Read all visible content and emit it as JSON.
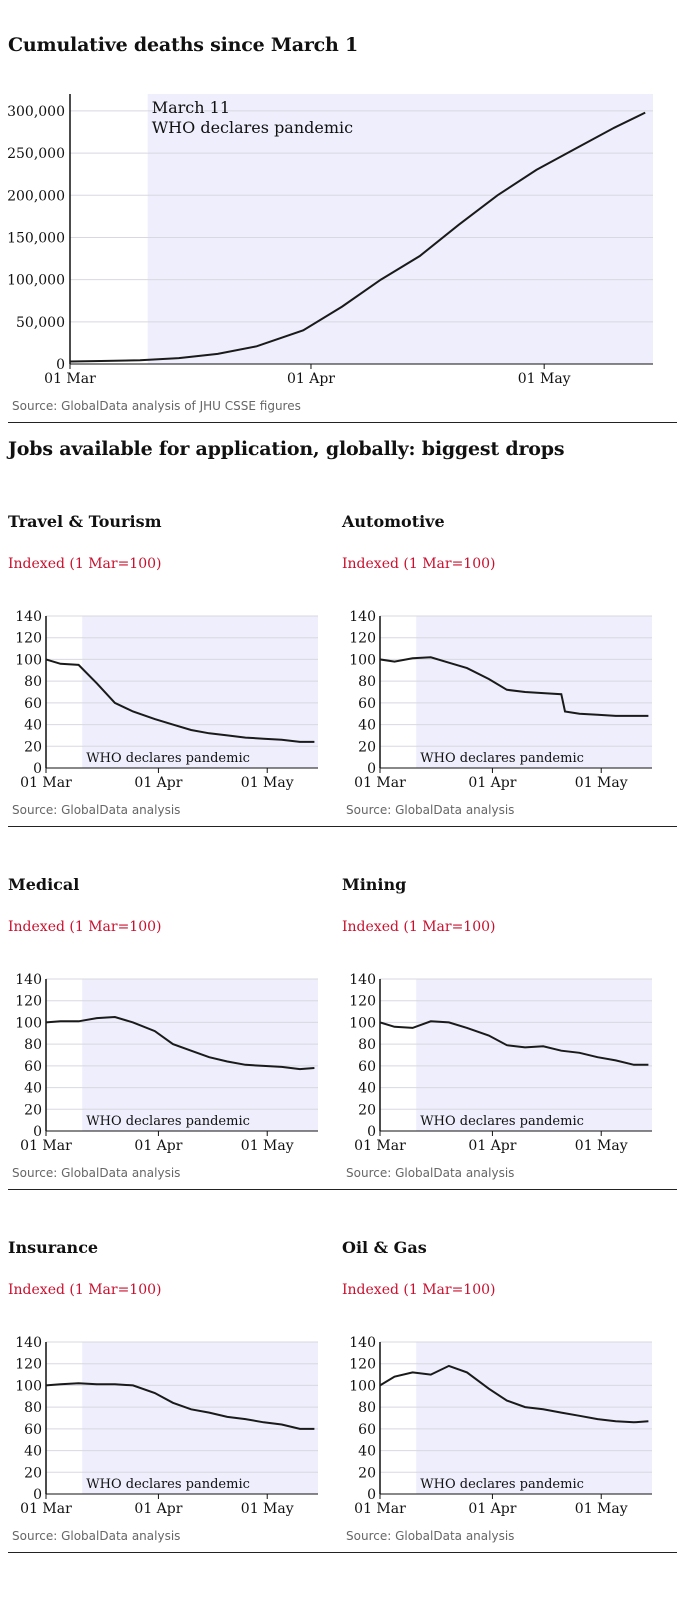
{
  "colors": {
    "shade": "#eeeefc",
    "line": "#1a1a1a",
    "accent": "#c8102e",
    "grid": "#d8d8e0"
  },
  "main_chart": {
    "title": "Cumulative deaths since March 1",
    "annotation_line1": "March 11",
    "annotation_line2": "WHO declares pandemic",
    "source": "Source: GlobalData analysis of JHU CSSE figures"
  },
  "small_section": {
    "title": "Jobs available for application, globally: biggest drops"
  },
  "small_common": {
    "subtitle": "Indexed (1 Mar=100)",
    "annotation": "WHO declares pandemic",
    "source": "Source: GlobalData analysis"
  },
  "chart_data": [
    {
      "type": "line",
      "title": "Cumulative deaths since March 1",
      "x_ticks": [
        "01 Mar",
        "01 Apr",
        "01 May"
      ],
      "y_ticks": [
        "0",
        "50,000",
        "100,000",
        "150,000",
        "200,000",
        "250,000",
        "300,000"
      ],
      "ylim": [
        0,
        320000
      ],
      "shaded_from": "March 11",
      "annotation": "March 11 WHO declares pandemic",
      "grid": true,
      "series": [
        {
          "x": [
            "2020-03-01",
            "2020-03-05",
            "2020-03-10",
            "2020-03-15",
            "2020-03-20",
            "2020-03-25",
            "2020-03-31",
            "2020-04-05",
            "2020-04-10",
            "2020-04-15",
            "2020-04-20",
            "2020-04-25",
            "2020-04-30",
            "2020-05-05",
            "2020-05-10",
            "2020-05-14"
          ],
          "values": [
            3000,
            3500,
            4500,
            7000,
            12000,
            21000,
            40000,
            68000,
            100000,
            128000,
            165000,
            200000,
            230000,
            255000,
            280000,
            298000
          ]
        }
      ]
    },
    {
      "type": "line",
      "title": "Travel & Tourism",
      "x_ticks": [
        "01 Mar",
        "01 Apr",
        "01 May"
      ],
      "y_ticks": [
        "0",
        "20",
        "40",
        "60",
        "80",
        "100",
        "120",
        "140"
      ],
      "ylim": [
        0,
        140
      ],
      "series": [
        {
          "x": [
            "2020-03-01",
            "2020-03-05",
            "2020-03-10",
            "2020-03-15",
            "2020-03-20",
            "2020-03-25",
            "2020-03-31",
            "2020-04-05",
            "2020-04-10",
            "2020-04-15",
            "2020-04-20",
            "2020-04-25",
            "2020-04-30",
            "2020-05-05",
            "2020-05-10",
            "2020-05-14"
          ],
          "values": [
            100,
            96,
            95,
            78,
            60,
            52,
            45,
            40,
            35,
            32,
            30,
            28,
            27,
            26,
            24,
            24
          ]
        }
      ]
    },
    {
      "type": "line",
      "title": "Automotive",
      "x_ticks": [
        "01 Mar",
        "01 Apr",
        "01 May"
      ],
      "y_ticks": [
        "0",
        "20",
        "40",
        "60",
        "80",
        "100",
        "120",
        "140"
      ],
      "ylim": [
        0,
        140
      ],
      "series": [
        {
          "x": [
            "2020-03-01",
            "2020-03-05",
            "2020-03-10",
            "2020-03-15",
            "2020-03-20",
            "2020-03-25",
            "2020-03-31",
            "2020-04-05",
            "2020-04-10",
            "2020-04-15",
            "2020-04-20",
            "2020-04-21",
            "2020-04-25",
            "2020-04-30",
            "2020-05-05",
            "2020-05-10",
            "2020-05-14"
          ],
          "values": [
            100,
            98,
            101,
            102,
            97,
            92,
            82,
            72,
            70,
            69,
            68,
            52,
            50,
            49,
            48,
            48,
            48
          ]
        }
      ]
    },
    {
      "type": "line",
      "title": "Medical",
      "x_ticks": [
        "01 Mar",
        "01 Apr",
        "01 May"
      ],
      "y_ticks": [
        "0",
        "20",
        "40",
        "60",
        "80",
        "100",
        "120",
        "140"
      ],
      "ylim": [
        0,
        140
      ],
      "series": [
        {
          "x": [
            "2020-03-01",
            "2020-03-05",
            "2020-03-10",
            "2020-03-15",
            "2020-03-20",
            "2020-03-25",
            "2020-03-31",
            "2020-04-05",
            "2020-04-10",
            "2020-04-15",
            "2020-04-20",
            "2020-04-25",
            "2020-04-30",
            "2020-05-05",
            "2020-05-10",
            "2020-05-14"
          ],
          "values": [
            100,
            101,
            101,
            104,
            105,
            100,
            92,
            80,
            74,
            68,
            64,
            61,
            60,
            59,
            57,
            58
          ]
        }
      ]
    },
    {
      "type": "line",
      "title": "Mining",
      "x_ticks": [
        "01 Mar",
        "01 Apr",
        "01 May"
      ],
      "y_ticks": [
        "0",
        "20",
        "40",
        "60",
        "80",
        "100",
        "120",
        "140"
      ],
      "ylim": [
        0,
        140
      ],
      "series": [
        {
          "x": [
            "2020-03-01",
            "2020-03-05",
            "2020-03-10",
            "2020-03-15",
            "2020-03-20",
            "2020-03-25",
            "2020-03-31",
            "2020-04-05",
            "2020-04-10",
            "2020-04-15",
            "2020-04-20",
            "2020-04-25",
            "2020-04-30",
            "2020-05-05",
            "2020-05-10",
            "2020-05-14"
          ],
          "values": [
            100,
            96,
            95,
            101,
            100,
            95,
            88,
            79,
            77,
            78,
            74,
            72,
            68,
            65,
            61,
            61
          ]
        }
      ]
    },
    {
      "type": "line",
      "title": "Insurance",
      "x_ticks": [
        "01 Mar",
        "01 Apr",
        "01 May"
      ],
      "y_ticks": [
        "0",
        "20",
        "40",
        "60",
        "80",
        "100",
        "120",
        "140"
      ],
      "ylim": [
        0,
        140
      ],
      "series": [
        {
          "x": [
            "2020-03-01",
            "2020-03-05",
            "2020-03-10",
            "2020-03-15",
            "2020-03-20",
            "2020-03-25",
            "2020-03-31",
            "2020-04-05",
            "2020-04-10",
            "2020-04-15",
            "2020-04-20",
            "2020-04-25",
            "2020-04-30",
            "2020-05-05",
            "2020-05-10",
            "2020-05-14"
          ],
          "values": [
            100,
            101,
            102,
            101,
            101,
            100,
            93,
            84,
            78,
            75,
            71,
            69,
            66,
            64,
            60,
            60
          ]
        }
      ]
    },
    {
      "type": "line",
      "title": "Oil & Gas",
      "x_ticks": [
        "01 Mar",
        "01 Apr",
        "01 May"
      ],
      "y_ticks": [
        "0",
        "20",
        "40",
        "60",
        "80",
        "100",
        "120",
        "140"
      ],
      "ylim": [
        0,
        140
      ],
      "series": [
        {
          "x": [
            "2020-03-01",
            "2020-03-05",
            "2020-03-10",
            "2020-03-15",
            "2020-03-20",
            "2020-03-25",
            "2020-03-31",
            "2020-04-05",
            "2020-04-10",
            "2020-04-15",
            "2020-04-20",
            "2020-04-25",
            "2020-04-30",
            "2020-05-05",
            "2020-05-10",
            "2020-05-14"
          ],
          "values": [
            100,
            108,
            112,
            110,
            118,
            112,
            97,
            86,
            80,
            78,
            75,
            72,
            69,
            67,
            66,
            67
          ]
        }
      ]
    }
  ]
}
